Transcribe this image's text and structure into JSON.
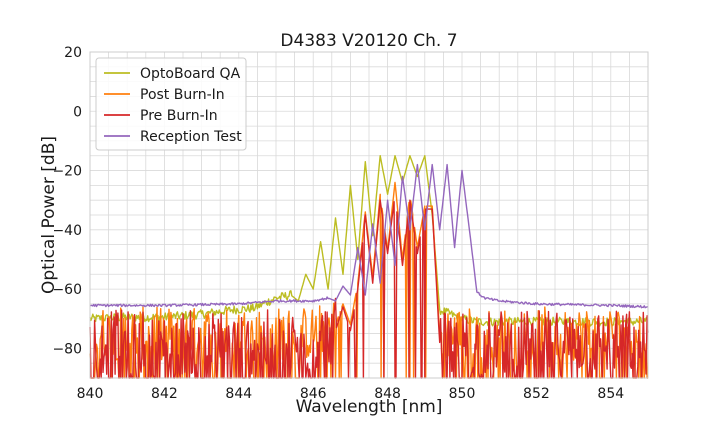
{
  "chart_data": {
    "type": "line",
    "title": "D4383 V20120 Ch. 7",
    "xlabel": "Wavelength [nm]",
    "ylabel": "Optical Power [dB]",
    "xlim": [
      840,
      855
    ],
    "ylim": [
      -90,
      20
    ],
    "xticks": [
      840,
      842,
      844,
      846,
      848,
      850,
      852,
      854
    ],
    "yticks": [
      20,
      0,
      -20,
      -40,
      -60,
      -80
    ],
    "xtick_labels": [
      "840",
      "842",
      "844",
      "846",
      "848",
      "850",
      "852",
      "854"
    ],
    "ytick_labels": [
      "20",
      "0",
      "−20",
      "−40",
      "−60",
      "−80"
    ],
    "grid": true,
    "legend_position": "top-left",
    "series": [
      {
        "name": "OptoBoard QA",
        "color": "#bcbd22",
        "x": [
          840,
          841,
          842,
          843,
          843.8,
          844.4,
          845.0,
          845.4,
          845.6,
          845.8,
          846.0,
          846.2,
          846.4,
          846.6,
          846.8,
          847.0,
          847.2,
          847.4,
          847.6,
          847.8,
          848.0,
          848.2,
          848.4,
          848.6,
          848.8,
          849.0,
          849.2,
          849.4,
          849.6,
          849.8,
          850.0,
          850.4,
          851,
          852,
          853,
          854,
          855
        ],
        "y": [
          -70,
          -69.5,
          -69.5,
          -68.5,
          -67,
          -66.5,
          -63,
          -62,
          -64,
          -55,
          -60,
          -44,
          -60,
          -36,
          -55,
          -25,
          -50,
          -17,
          -42,
          -15,
          -28,
          -15,
          -24,
          -15,
          -22,
          -15,
          -35,
          -67,
          -68,
          -69,
          -70,
          -71,
          -71,
          -71,
          -71,
          -71,
          -71
        ]
      },
      {
        "name": "Post Burn-In",
        "color": "#ff7f0e",
        "x": [
          840,
          845,
          846,
          846.6,
          846.8,
          847.0,
          847.2,
          847.4,
          847.6,
          847.8,
          848.0,
          848.2,
          848.4,
          848.6,
          848.8,
          849.0,
          849.2,
          849.4,
          849.6,
          850,
          855
        ],
        "y": [
          -75,
          -75,
          -75,
          -72,
          -65,
          -72,
          -58,
          -34,
          -56,
          -28,
          -47,
          -24,
          -50,
          -28,
          -46,
          -32,
          -32,
          -75,
          -75,
          -75,
          -75
        ]
      },
      {
        "name": "Pre Burn-In",
        "color": "#d62728",
        "x": [
          840,
          845,
          846,
          846.6,
          846.8,
          847.0,
          847.2,
          847.4,
          847.6,
          847.8,
          848.0,
          848.2,
          848.4,
          848.6,
          848.8,
          849.0,
          849.2,
          849.4,
          849.6,
          850,
          855
        ],
        "y": [
          -78,
          -78,
          -78,
          -74,
          -66,
          -74,
          -60,
          -35,
          -58,
          -30,
          -48,
          -28,
          -52,
          -30,
          -48,
          -33,
          -33,
          -78,
          -78,
          -78,
          -78
        ]
      },
      {
        "name": "Reception Test",
        "color": "#9467bd",
        "x": [
          840,
          842,
          844,
          845,
          846,
          846.4,
          846.6,
          846.8,
          847.0,
          847.2,
          847.4,
          847.6,
          847.8,
          848.0,
          848.2,
          848.4,
          848.6,
          848.8,
          849.0,
          849.2,
          849.4,
          849.6,
          849.8,
          850.0,
          850.2,
          850.4,
          850.6,
          851,
          852,
          854,
          855
        ],
        "y": [
          -65.5,
          -65.5,
          -65,
          -64,
          -64,
          -63,
          -64,
          -59,
          -62,
          -46,
          -62,
          -38,
          -58,
          -30,
          -52,
          -22,
          -40,
          -18,
          -40,
          -18,
          -40,
          -18,
          -46,
          -20,
          -40,
          -61,
          -63,
          -64,
          -65,
          -65.5,
          -66
        ]
      }
    ]
  }
}
